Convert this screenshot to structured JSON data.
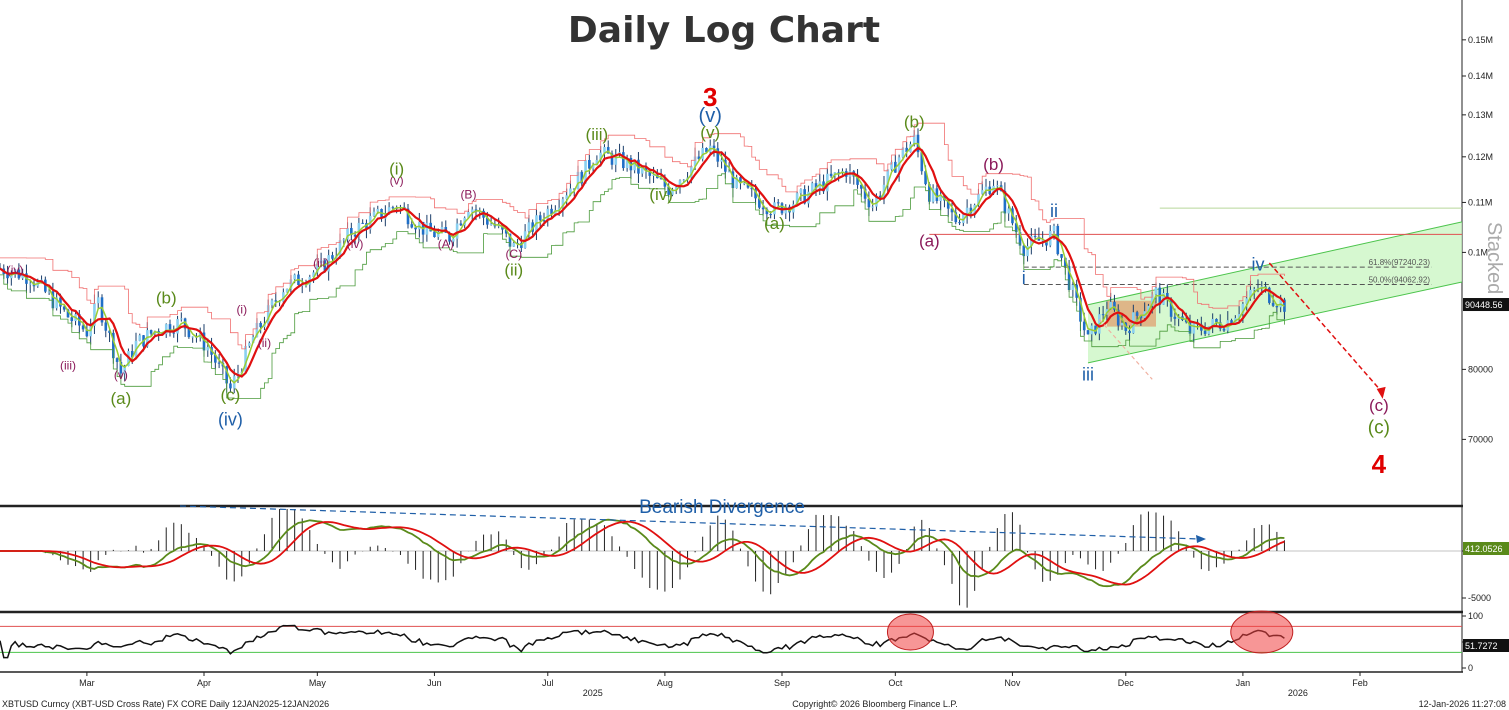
{
  "chart_data": {
    "type": "candlestick",
    "title": "Daily Log Chart",
    "y_scale": "log",
    "y_range": [
      62000,
      160000
    ],
    "y_ticks": [
      {
        "v": 70000,
        "label": "70000"
      },
      {
        "v": 80000,
        "label": "80000"
      },
      {
        "v": 100000,
        "label": "0.1M"
      },
      {
        "v": 110000,
        "label": "0.11M"
      },
      {
        "v": 120000,
        "label": "0.12M"
      },
      {
        "v": 130000,
        "label": "0.13M"
      },
      {
        "v": 140000,
        "label": "0.14M"
      },
      {
        "v": 150000,
        "label": "0.15M"
      }
    ],
    "x_range": [
      "2025-02-06",
      "2026-02-28"
    ],
    "x_months": [
      {
        "date": "2025-03-01",
        "label": "Mar"
      },
      {
        "date": "2025-04-01",
        "label": "Apr"
      },
      {
        "date": "2025-05-01",
        "label": "May"
      },
      {
        "date": "2025-06-01",
        "label": "Jun"
      },
      {
        "date": "2025-07-01",
        "label": "Jul"
      },
      {
        "date": "2025-08-01",
        "label": "Aug"
      },
      {
        "date": "2025-09-01",
        "label": "Sep"
      },
      {
        "date": "2025-10-01",
        "label": "Oct"
      },
      {
        "date": "2025-11-01",
        "label": "Nov"
      },
      {
        "date": "2025-12-01",
        "label": "Dec"
      },
      {
        "date": "2026-01-01",
        "label": "Jan"
      },
      {
        "date": "2026-02-01",
        "label": "Feb"
      }
    ],
    "x_years": [
      {
        "date": "2025-07-01",
        "label": "2025"
      },
      {
        "date": "2026-01-01",
        "label": "2026"
      }
    ],
    "price_path": [
      {
        "d": "2025-02-06",
        "p": 97000
      },
      {
        "d": "2025-02-14",
        "p": 95500
      },
      {
        "d": "2025-02-24",
        "p": 88500
      },
      {
        "d": "2025-03-01",
        "p": 86000
      },
      {
        "d": "2025-03-04",
        "p": 91000
      },
      {
        "d": "2025-03-10",
        "p": 79500
      },
      {
        "d": "2025-03-14",
        "p": 84000
      },
      {
        "d": "2025-03-20",
        "p": 86500
      },
      {
        "d": "2025-03-26",
        "p": 87500
      },
      {
        "d": "2025-04-02",
        "p": 83500
      },
      {
        "d": "2025-04-08",
        "p": 77000
      },
      {
        "d": "2025-04-14",
        "p": 85000
      },
      {
        "d": "2025-04-22",
        "p": 93500
      },
      {
        "d": "2025-05-02",
        "p": 97000
      },
      {
        "d": "2025-05-10",
        "p": 104000
      },
      {
        "d": "2025-05-22",
        "p": 109500
      },
      {
        "d": "2025-05-30",
        "p": 104000
      },
      {
        "d": "2025-06-05",
        "p": 103000
      },
      {
        "d": "2025-06-10",
        "p": 109500
      },
      {
        "d": "2025-06-18",
        "p": 104500
      },
      {
        "d": "2025-06-22",
        "p": 101000
      },
      {
        "d": "2025-06-30",
        "p": 107500
      },
      {
        "d": "2025-07-10",
        "p": 116000
      },
      {
        "d": "2025-07-14",
        "p": 121000
      },
      {
        "d": "2025-07-22",
        "p": 118500
      },
      {
        "d": "2025-08-02",
        "p": 113000
      },
      {
        "d": "2025-08-13",
        "p": 122000
      },
      {
        "d": "2025-08-20",
        "p": 113500
      },
      {
        "d": "2025-08-30",
        "p": 108500
      },
      {
        "d": "2025-09-05",
        "p": 110500
      },
      {
        "d": "2025-09-18",
        "p": 117000
      },
      {
        "d": "2025-09-25",
        "p": 109500
      },
      {
        "d": "2025-10-02",
        "p": 120000
      },
      {
        "d": "2025-10-06",
        "p": 124000
      },
      {
        "d": "2025-10-10",
        "p": 112000
      },
      {
        "d": "2025-10-17",
        "p": 106500
      },
      {
        "d": "2025-10-27",
        "p": 114500
      },
      {
        "d": "2025-11-04",
        "p": 101000
      },
      {
        "d": "2025-11-12",
        "p": 103500
      },
      {
        "d": "2025-11-21",
        "p": 84500
      },
      {
        "d": "2025-11-26",
        "p": 90500
      },
      {
        "d": "2025-12-01",
        "p": 86500
      },
      {
        "d": "2025-12-09",
        "p": 92500
      },
      {
        "d": "2025-12-18",
        "p": 86000
      },
      {
        "d": "2025-12-28",
        "p": 87800
      },
      {
        "d": "2026-01-05",
        "p": 93500
      },
      {
        "d": "2026-01-12",
        "p": 90448.56
      }
    ],
    "waves": [
      {
        "d": "2025-02-10",
        "p": 96500,
        "label": "(iv)",
        "color": "#8b1a5a",
        "size": 12,
        "pos": "above"
      },
      {
        "d": "2025-02-24",
        "p": 80500,
        "label": "(iii)",
        "color": "#8b1a5a",
        "size": 12,
        "pos": "below"
      },
      {
        "d": "2025-03-10",
        "p": 79000,
        "label": "(v)",
        "color": "#8b1a5a",
        "size": 12,
        "pos": "below"
      },
      {
        "d": "2025-03-10",
        "p": 75500,
        "label": "(a)",
        "color": "#5a8a1a",
        "size": 17,
        "pos": "below"
      },
      {
        "d": "2025-03-22",
        "p": 91500,
        "label": "(b)",
        "color": "#5a8a1a",
        "size": 17,
        "pos": "above"
      },
      {
        "d": "2025-04-08",
        "p": 76000,
        "label": "(c)",
        "color": "#5a8a1a",
        "size": 17,
        "pos": "below"
      },
      {
        "d": "2025-04-08",
        "p": 72500,
        "label": "(iv)",
        "color": "#1f5fa8",
        "size": 18,
        "pos": "below"
      },
      {
        "d": "2025-04-11",
        "p": 89500,
        "label": "(i)",
        "color": "#8b1a5a",
        "size": 12,
        "pos": "above"
      },
      {
        "d": "2025-04-17",
        "p": 84000,
        "label": "(ii)",
        "color": "#8b1a5a",
        "size": 12,
        "pos": "below"
      },
      {
        "d": "2025-05-02",
        "p": 97800,
        "label": "(iii)",
        "color": "#8b1a5a",
        "size": 12,
        "pos": "above"
      },
      {
        "d": "2025-05-11",
        "p": 101500,
        "label": "(iv)",
        "color": "#8b1a5a",
        "size": 12,
        "pos": "below"
      },
      {
        "d": "2025-05-22",
        "p": 114500,
        "label": "(v)",
        "color": "#8b1a5a",
        "size": 12,
        "pos": "above"
      },
      {
        "d": "2025-05-22",
        "p": 117000,
        "label": "(i)",
        "color": "#5a8a1a",
        "size": 17,
        "pos": "above"
      },
      {
        "d": "2025-06-04",
        "p": 101500,
        "label": "(A)",
        "color": "#8b1a5a",
        "size": 12,
        "pos": "below"
      },
      {
        "d": "2025-06-10",
        "p": 111500,
        "label": "(B)",
        "color": "#8b1a5a",
        "size": 12,
        "pos": "above"
      },
      {
        "d": "2025-06-22",
        "p": 99500,
        "label": "(C)",
        "color": "#8b1a5a",
        "size": 12,
        "pos": "below"
      },
      {
        "d": "2025-06-22",
        "p": 96500,
        "label": "(ii)",
        "color": "#5a8a1a",
        "size": 17,
        "pos": "below"
      },
      {
        "d": "2025-07-14",
        "p": 125000,
        "label": "(iii)",
        "color": "#5a8a1a",
        "size": 17,
        "pos": "above"
      },
      {
        "d": "2025-07-31",
        "p": 111500,
        "label": "(iv)",
        "color": "#5a8a1a",
        "size": 17,
        "pos": "below"
      },
      {
        "d": "2025-08-13",
        "p": 125500,
        "label": "(v)",
        "color": "#5a8a1a",
        "size": 17,
        "pos": "above"
      },
      {
        "d": "2025-08-13",
        "p": 129500,
        "label": "(v)",
        "color": "#1f5fa8",
        "size": 20,
        "pos": "above"
      },
      {
        "d": "2025-08-13",
        "p": 134000,
        "label": "3",
        "color": "#e00000",
        "size": 26,
        "pos": "above",
        "bold": true
      },
      {
        "d": "2025-08-30",
        "p": 105500,
        "label": "(a)",
        "color": "#5a8a1a",
        "size": 17,
        "pos": "below"
      },
      {
        "d": "2025-10-06",
        "p": 128000,
        "label": "(b)",
        "color": "#5a8a1a",
        "size": 17,
        "pos": "above"
      },
      {
        "d": "2025-10-10",
        "p": 102000,
        "label": "(a)",
        "color": "#8b1a5a",
        "size": 17,
        "pos": "below"
      },
      {
        "d": "2025-10-27",
        "p": 118000,
        "label": "(b)",
        "color": "#8b1a5a",
        "size": 17,
        "pos": "above"
      },
      {
        "d": "2025-11-04",
        "p": 95000,
        "label": "i",
        "color": "#1f5fa8",
        "size": 18,
        "pos": "below"
      },
      {
        "d": "2025-11-12",
        "p": 108000,
        "label": "ii",
        "color": "#1f5fa8",
        "size": 18,
        "pos": "above"
      },
      {
        "d": "2025-11-21",
        "p": 79000,
        "label": "iii",
        "color": "#1f5fa8",
        "size": 18,
        "pos": "below"
      },
      {
        "d": "2026-01-05",
        "p": 97500,
        "label": "iv",
        "color": "#1f5fa8",
        "size": 18,
        "pos": "above"
      },
      {
        "d": "2026-02-06",
        "p": 74500,
        "label": "(c)",
        "color": "#8b1a5a",
        "size": 17,
        "pos": "center"
      },
      {
        "d": "2026-02-06",
        "p": 71500,
        "label": "(c)",
        "color": "#5a8a1a",
        "size": 19,
        "pos": "center"
      },
      {
        "d": "2026-02-06",
        "p": 66500,
        "label": "4",
        "color": "#e00000",
        "size": 26,
        "pos": "center",
        "bold": true
      }
    ],
    "fib_levels": [
      {
        "p": 97240.23,
        "label": "61.8%(97240.23)"
      },
      {
        "p": 94062.92,
        "label": "50.0%(94062.92)"
      }
    ],
    "h_lines": [
      {
        "p": 103500,
        "color": "#e05050",
        "from": "2025-10-10"
      },
      {
        "p": 108800,
        "color": "#b8d89a",
        "from": "2025-12-10"
      }
    ],
    "channel": {
      "lower": [
        {
          "d": "2025-11-21",
          "p": 81000
        },
        {
          "d": "2026-02-28",
          "p": 94500
        }
      ],
      "upper": [
        {
          "d": "2025-11-21",
          "p": 90500
        },
        {
          "d": "2026-02-28",
          "p": 106000
        }
      ]
    },
    "last_price_tag": "90448.56",
    "divergence_label": "Bearish Divergence",
    "macd": {
      "y_ticks": [
        {
          "v": 0,
          "label": "0"
        },
        {
          "v": -5000,
          "label": "-5000"
        }
      ],
      "last_tag": "412.0526"
    },
    "rsi": {
      "y_ticks": [
        {
          "v": 100,
          "label": "100"
        },
        {
          "v": 50,
          "label": "50"
        },
        {
          "v": 0,
          "label": "0"
        }
      ],
      "upper_band": 80,
      "lower_band": 30,
      "last_tag": "51.7272"
    }
  },
  "labels": {
    "stacked": "Stacked",
    "footer_left": "XBTUSD Curncy (XBT-USD Cross Rate) FX CORE Daily 12JAN2025-12JAN2026",
    "footer_center": "Copyright© 2026 Bloomberg Finance L.P.",
    "footer_right": "12-Jan-2026 11:27:08"
  }
}
